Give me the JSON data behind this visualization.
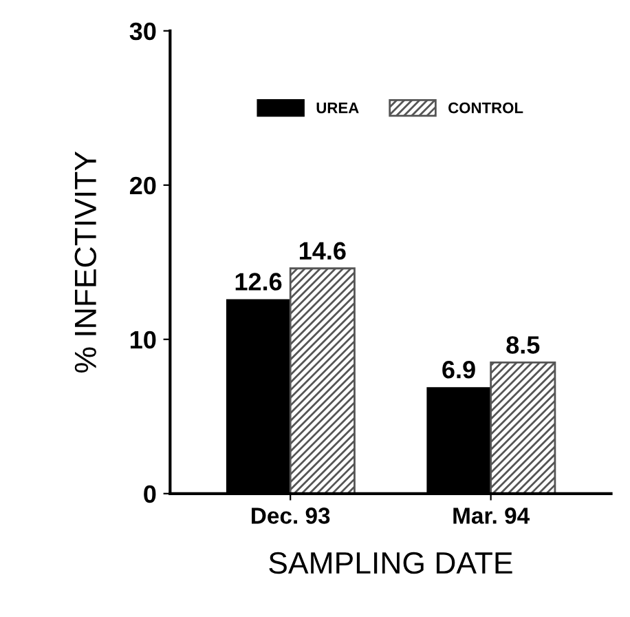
{
  "chart_data": {
    "type": "bar",
    "xlabel": "SAMPLING DATE",
    "ylabel": "% INFECTIVITY",
    "categories": [
      "Dec. 93",
      "Mar. 94"
    ],
    "series": [
      {
        "name": "UREA",
        "color": "#000000",
        "values": [
          12.6,
          6.9
        ]
      },
      {
        "name": "CONTROL",
        "color": "#555555",
        "values": [
          14.6,
          8.5
        ]
      }
    ],
    "ylim": [
      0,
      30
    ],
    "yticks": [
      0,
      10,
      20,
      30
    ],
    "data_labels": true,
    "legend": "top",
    "grid": false
  }
}
